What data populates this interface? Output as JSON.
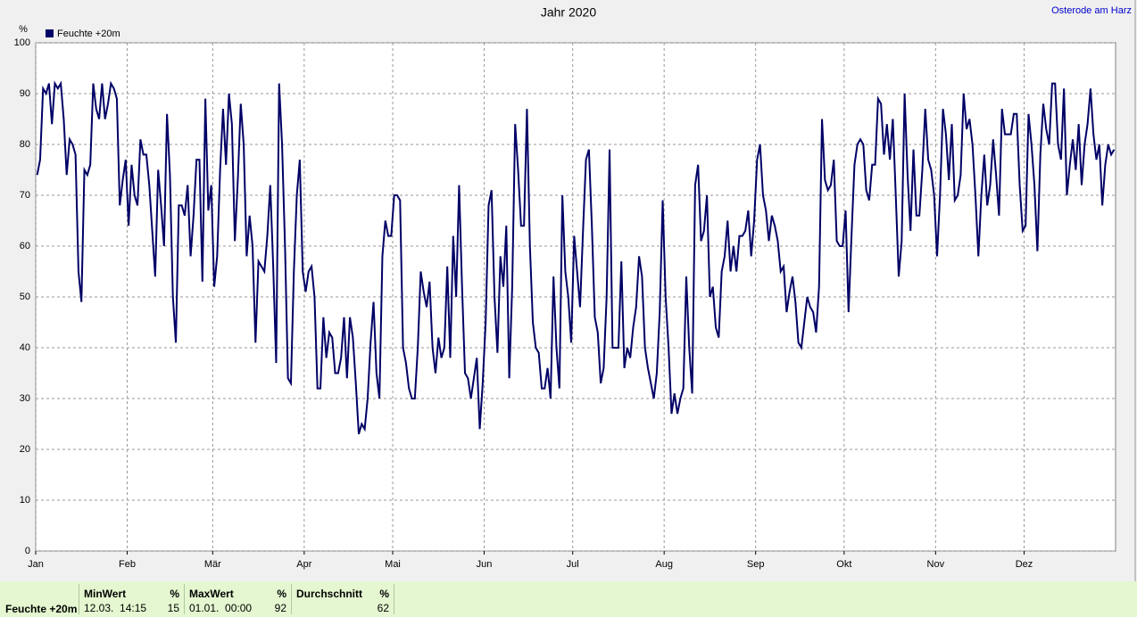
{
  "chart_data": {
    "type": "line",
    "title": "Jahr 2020",
    "station": "Osterode am Harz",
    "y_unit": "%",
    "legend": "top-left",
    "grid": true,
    "xlim": [
      0,
      366
    ],
    "xticks": [
      {
        "value": 0,
        "label": "Jan"
      },
      {
        "value": 31,
        "label": "Feb"
      },
      {
        "value": 60,
        "label": "Mär"
      },
      {
        "value": 91,
        "label": "Apr"
      },
      {
        "value": 121,
        "label": "Mai"
      },
      {
        "value": 152,
        "label": "Jun"
      },
      {
        "value": 182,
        "label": "Jul"
      },
      {
        "value": 213,
        "label": "Aug"
      },
      {
        "value": 244,
        "label": "Sep"
      },
      {
        "value": 274,
        "label": "Okt"
      },
      {
        "value": 305,
        "label": "Nov"
      },
      {
        "value": 335,
        "label": "Dez"
      }
    ],
    "ylim": [
      0,
      100
    ],
    "yticks": [
      0,
      10,
      20,
      30,
      40,
      50,
      60,
      70,
      80,
      90,
      100
    ],
    "series": [
      {
        "name": "Feuchte +20m",
        "color": "#000066",
        "values": [
          74,
          77,
          91,
          90,
          92,
          84,
          92,
          91,
          92,
          85,
          74,
          81,
          80,
          78,
          55,
          49,
          75,
          74,
          76,
          92,
          87,
          85,
          92,
          85,
          88,
          92,
          91,
          89,
          68,
          73,
          77,
          64,
          76,
          70,
          68,
          81,
          78,
          78,
          72,
          63,
          54,
          75,
          68,
          60,
          86,
          74,
          50,
          41,
          68,
          68,
          66,
          72,
          58,
          66,
          77,
          77,
          53,
          89,
          67,
          72,
          52,
          58,
          75,
          87,
          76,
          90,
          84,
          61,
          73,
          88,
          80,
          58,
          66,
          60,
          41,
          57,
          56,
          55,
          62,
          72,
          56,
          37,
          92,
          80,
          60,
          34,
          33,
          55,
          70,
          77,
          55,
          51,
          55,
          56,
          50,
          32,
          32,
          46,
          38,
          43,
          42,
          35,
          35,
          38,
          46,
          34,
          46,
          42,
          33,
          23,
          25,
          24,
          30,
          41,
          49,
          35,
          30,
          58,
          65,
          62,
          62,
          70,
          70,
          69,
          40,
          37,
          32,
          30,
          30,
          40,
          55,
          51,
          48,
          53,
          40,
          35,
          42,
          38,
          40,
          56,
          38,
          62,
          50,
          72,
          52,
          35,
          34,
          30,
          34,
          38,
          24,
          33,
          45,
          68,
          71,
          50,
          39,
          58,
          52,
          64,
          34,
          52,
          84,
          75,
          64,
          64,
          87,
          60,
          45,
          40,
          39,
          32,
          32,
          36,
          30,
          54,
          40,
          32,
          70,
          55,
          50,
          41,
          62,
          55,
          48,
          63,
          77,
          79,
          64,
          46,
          43,
          33,
          36,
          50,
          79,
          40,
          40,
          40,
          57,
          36,
          40,
          38,
          44,
          48,
          58,
          54,
          40,
          36,
          33,
          30,
          35,
          47,
          69,
          50,
          40,
          27,
          31,
          27,
          30,
          32,
          54,
          40,
          31,
          72,
          76,
          61,
          63,
          70,
          50,
          52,
          44,
          42,
          55,
          58,
          65,
          55,
          60,
          55,
          62,
          62,
          63,
          67,
          58,
          65,
          77,
          80,
          70,
          67,
          61,
          66,
          64,
          61,
          55,
          56,
          47,
          51,
          54,
          49,
          41,
          40,
          45,
          50,
          48,
          47,
          43,
          52,
          85,
          73,
          71,
          72,
          77,
          61,
          60,
          60,
          67,
          47,
          62,
          76,
          80,
          81,
          80,
          71,
          69,
          76,
          76,
          89,
          88,
          78,
          84,
          77,
          85,
          70,
          54,
          61,
          90,
          74,
          63,
          79,
          66,
          66,
          75,
          87,
          77,
          75,
          70,
          58,
          70,
          87,
          82,
          73,
          84,
          69,
          70,
          74,
          90,
          83,
          85,
          80,
          70,
          58,
          70,
          78,
          68,
          72,
          81,
          74,
          66,
          87,
          82,
          82,
          82,
          86,
          86,
          72,
          63,
          64,
          86,
          80,
          72,
          59,
          78,
          88,
          83,
          80,
          92,
          92,
          80,
          77,
          91,
          70,
          76,
          81,
          75,
          84,
          72,
          80,
          84,
          91,
          82,
          77,
          80,
          68,
          76,
          80,
          78,
          79
        ]
      }
    ]
  },
  "footer": {
    "series_label": "Feuchte +20m",
    "stats": [
      {
        "title": "MinWert",
        "unit": "%",
        "when": "12.03.  14:15",
        "value": "15"
      },
      {
        "title": "MaxWert",
        "unit": "%",
        "when": "01.01.  00:00",
        "value": "92"
      },
      {
        "title": "Durchschnitt",
        "unit": "%",
        "when": "",
        "value": "62"
      }
    ]
  }
}
